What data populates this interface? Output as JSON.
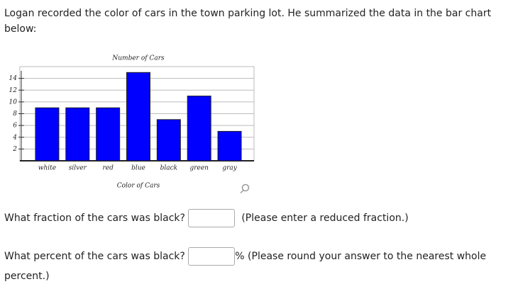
{
  "question": {
    "intro": "Logan recorded the color of cars in the town parking lot. He summarized the data in the bar chart below:",
    "q1": "What fraction of the cars was black?",
    "q1_note": "(Please enter a reduced fraction.)",
    "q2": "What percent of the cars was black?",
    "q2_note": "% (Please round your answer to the nearest whole percent.)"
  },
  "chart_data": {
    "type": "bar",
    "title": "Number of Cars",
    "x_label": "Color of Cars",
    "categories": [
      "white",
      "silver",
      "red",
      "blue",
      "black",
      "green",
      "gray"
    ],
    "values": [
      9,
      9,
      9,
      15,
      7,
      11,
      5
    ],
    "color": "#0000ff",
    "ylim": [
      0,
      16
    ],
    "yticks": [
      2,
      4,
      6,
      8,
      10,
      12,
      14
    ],
    "grid": true
  }
}
